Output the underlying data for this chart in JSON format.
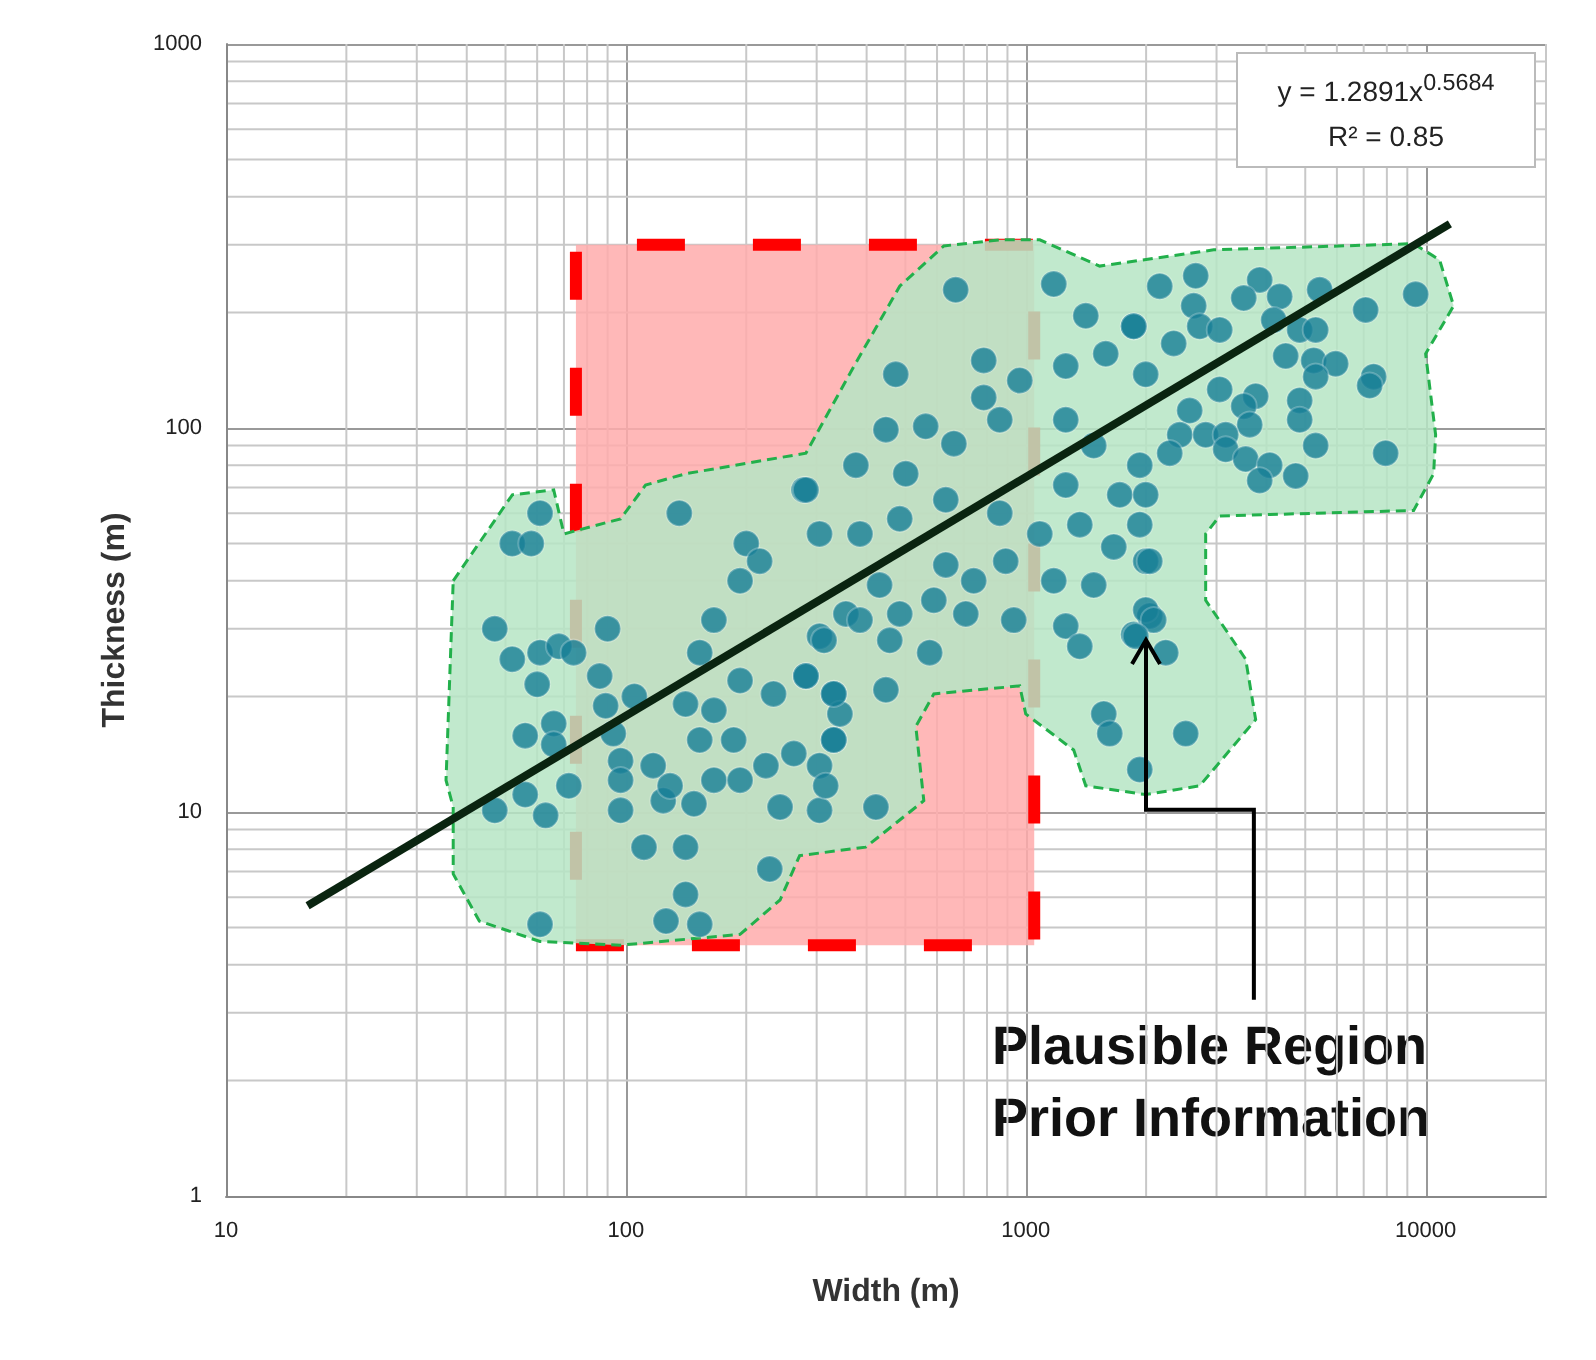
{
  "chart_data": {
    "type": "scatter",
    "xlabel": "Width (m)",
    "ylabel": "Thickness (m)",
    "log": "xy",
    "grid": true,
    "xlim": [
      10,
      20000
    ],
    "ylim": [
      1,
      1000
    ],
    "xticks": [
      10,
      100,
      1000,
      10000
    ],
    "yticks": [
      1,
      10,
      100,
      1000
    ],
    "annotations": [
      "y = 1.2891x$^{0.5684}$",
      "R² = 0.85",
      {
        "text": "Plausible Region\nPrior Information",
        "x": 2000,
        "y": 28
      }
    ],
    "series": [
      {
        "type": "area",
        "color": "#ff0000",
        "line_style": "dashed",
        "x": [
          75,
          1050,
          1050,
          75,
          75
        ],
        "values": [
          4.5,
          4.5,
          300,
          300,
          4.5
        ]
      },
      {
        "type": "area",
        "color": "#22b04b",
        "line_style": "dashed",
        "x": [
          37,
          52,
          66,
          70,
          97,
          112,
          141,
          282,
          372,
          484,
          624,
          861,
          1084,
          1531,
          2951,
          9333,
          10839,
          11749,
          10000,
          10593,
          10471,
          9333,
          3055,
          2818,
          2818,
          3548,
          3758,
          2723,
          1995,
          1413,
          1318,
          1000,
          966,
          589,
          531,
          556,
          398,
          272,
          243,
          193,
          97,
          61,
          43,
          37,
          37,
          35.5,
          37
        ],
        "values": [
          40,
          67,
          69,
          53,
          58,
          71,
          76,
          86,
          145,
          234,
          298,
          309,
          309,
          264,
          291,
          302,
          274,
          208,
          156,
          96,
          76,
          61,
          59,
          53,
          35.6,
          25,
          17.4,
          11.7,
          11.1,
          11.7,
          14.5,
          18,
          21.3,
          20.3,
          16.7,
          10.7,
          8.1,
          7.7,
          5.9,
          4.8,
          4.5,
          4.6,
          5.2,
          6.9,
          10.3,
          12.1,
          40
        ]
      },
      {
        "marker": "circle",
        "color": "#177e96",
        "x": [
          61,
          52,
          58,
          136,
          279,
          47,
          90,
          52,
          61,
          68,
          74,
          60,
          86,
          56,
          66,
          66,
          105,
          89,
          93,
          97,
          117,
          97,
          72,
          56,
          47,
          63,
          97,
          124,
          129,
          148,
          111,
          141,
          229,
          141,
          61,
          126,
          153,
          141,
          166,
          153,
          186,
          166,
          193,
          224,
          263,
          305,
          331,
          243,
          305,
          166,
          193,
          200,
          216,
          305,
          282,
          234,
          193,
          153,
          331,
          343,
          355,
          668,
          1175,
          1413,
          473,
          785,
          785,
          447,
          562,
          376,
          282,
          501,
          661,
          861,
          966,
          1259,
          1585,
          1862,
          1995,
          1259,
          1479,
          1928,
          1259,
          1718,
          1995,
          305,
          385,
          484,
          631,
          861,
          1084,
          1365,
          1660,
          1995,
          431,
          631,
          741,
          891,
          1175,
          1479,
          385,
          484,
          589,
          708,
          933,
          313,
          457,
          575,
          1259,
          1365,
          1862,
          2042,
          282,
          331,
          447,
          331,
          316,
          422,
          1567,
          1622,
          1928,
          2661,
          2163,
          3846,
          3508,
          4315,
          5433,
          7079,
          9441,
          2630,
          2723,
          3055,
          1862,
          2344,
          4169,
          4842,
          5309,
          4467,
          5248,
          5957,
          5309,
          7413,
          7244,
          3758,
          3055,
          4842,
          4842,
          2570,
          3508,
          3631,
          2427,
          2818,
          3162,
          3162,
          2291,
          5309,
          7943,
          3548,
          4074,
          3846,
          4732,
          1928,
          2042,
          1995,
          2089,
          1884,
          2239,
          2512
        ],
        "values": [
          60,
          50,
          50,
          60,
          69,
          30,
          30,
          25,
          26,
          27,
          26,
          21.5,
          22.6,
          15.8,
          17,
          15,
          20,
          18.9,
          16,
          13.6,
          13.2,
          12.1,
          11.7,
          11.1,
          10.1,
          9.8,
          10.1,
          10.7,
          11.7,
          10.5,
          8.1,
          8.1,
          7.1,
          6.1,
          5.1,
          5.2,
          5.1,
          19.1,
          18.4,
          15.4,
          15.4,
          12.1,
          12.1,
          13.2,
          14.2,
          13.2,
          15.4,
          10.3,
          10.1,
          31.6,
          40,
          50,
          45,
          28.7,
          22.6,
          20.3,
          22,
          26,
          20.3,
          18,
          32.8,
          229,
          237,
          196,
          138,
          150,
          120,
          99,
          101,
          80,
          69,
          76,
          91,
          105,
          133,
          145,
          156,
          184,
          138,
          105,
          90,
          80,
          71,
          67,
          67,
          53,
          53,
          58,
          65,
          60,
          53,
          56,
          49,
          45,
          39,
          44,
          40,
          45,
          40,
          39,
          31.6,
          32.8,
          35.6,
          32.8,
          31.6,
          28,
          28,
          26,
          30.5,
          27,
          29,
          32.4,
          22.6,
          20.3,
          20.8,
          15.4,
          11.7,
          10.3,
          18,
          16,
          12.9,
          249,
          234,
          243,
          218,
          220,
          229,
          203,
          223,
          208,
          184,
          180,
          184,
          166,
          191,
          180,
          180,
          154,
          150,
          147,
          136,
          136,
          129,
          121,
          126,
          118,
          105,
          111,
          114,
          102,
          96,
          96,
          96,
          88,
          86,
          90,
          86,
          83,
          80,
          73,
          75,
          56,
          45,
          33.6,
          31.6,
          28.7,
          26,
          16
        ]
      },
      {
        "type": "line",
        "color": "#0a2410",
        "x": [
          16,
          11500
        ],
        "values": [
          5.7,
          340
        ]
      }
    ]
  }
}
